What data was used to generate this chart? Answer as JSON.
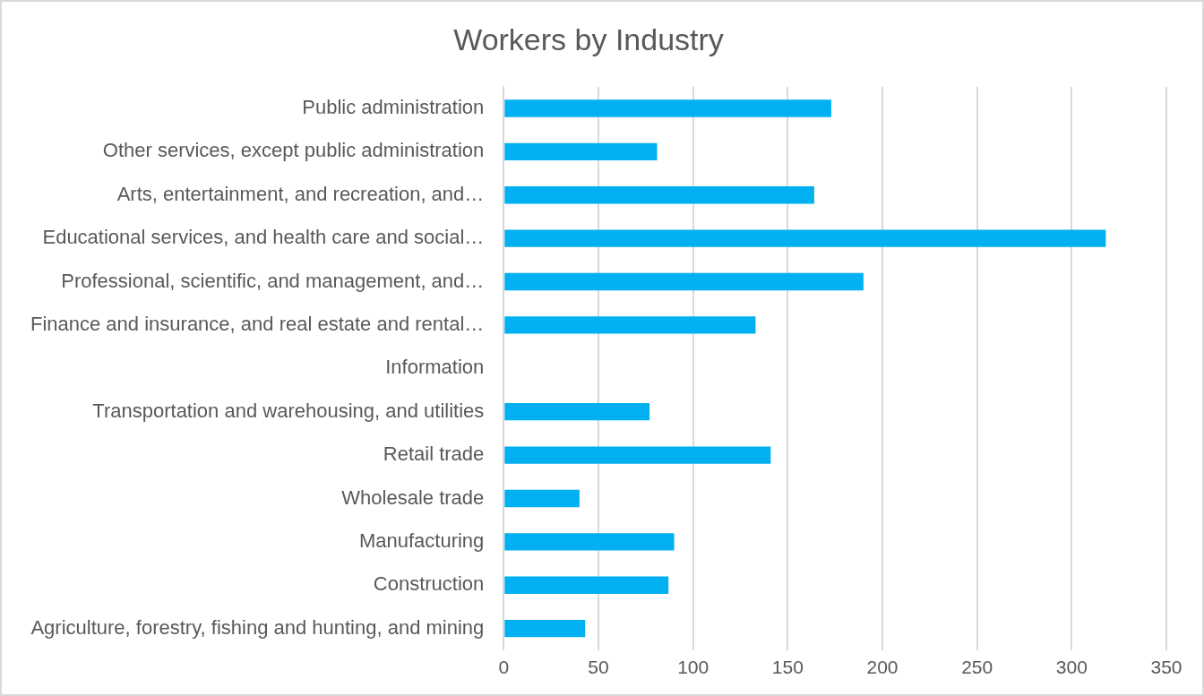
{
  "chart_data": {
    "type": "bar",
    "orientation": "horizontal",
    "title": "Workers by Industry",
    "categories": [
      "Public administration",
      "Other services, except public administration",
      "Arts, entertainment, and recreation, and…",
      "Educational services, and health care and social…",
      "Professional, scientific, and management, and…",
      "Finance and insurance, and real estate and rental…",
      "Information",
      "Transportation and warehousing, and utilities",
      "Retail trade",
      "Wholesale trade",
      "Manufacturing",
      "Construction",
      "Agriculture, forestry, fishing and hunting, and mining"
    ],
    "values": [
      173,
      81,
      164,
      318,
      190,
      133,
      0,
      77,
      141,
      40,
      90,
      87,
      43
    ],
    "color": "#00b0f0",
    "xlim": [
      0,
      350
    ],
    "xticks": [
      0,
      50,
      100,
      150,
      200,
      250,
      300,
      350
    ],
    "grid": "x",
    "legend": false
  }
}
